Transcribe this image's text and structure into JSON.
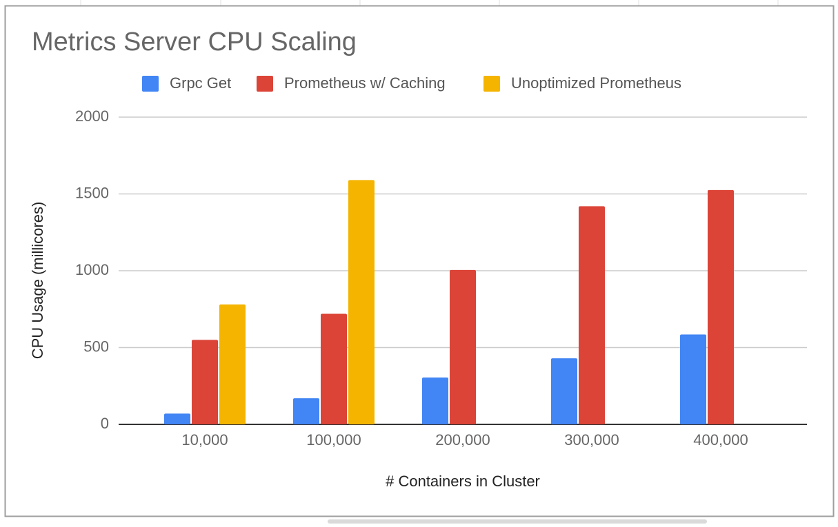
{
  "chart_data": {
    "type": "bar",
    "title": "Metrics Server CPU Scaling",
    "x_label": "# Containers in Cluster",
    "y_label": "CPU Usage (millicores)",
    "categories": [
      "10,000",
      "100,000",
      "200,000",
      "300,000",
      "400,000"
    ],
    "series": [
      {
        "name": "Grpc Get",
        "color": "#4285f4",
        "values": [
          70,
          170,
          305,
          430,
          585
        ]
      },
      {
        "name": "Prometheus w/ Caching",
        "color": "#db4437",
        "values": [
          550,
          720,
          1005,
          1420,
          1525
        ]
      },
      {
        "name": "Unoptimized Prometheus",
        "color": "#f4b400",
        "values": [
          780,
          1590,
          null,
          null,
          null
        ]
      }
    ],
    "ylim": [
      0,
      2000
    ],
    "yticks": [
      0,
      500,
      1000,
      1500,
      2000
    ],
    "grid": true,
    "legend": "top"
  }
}
